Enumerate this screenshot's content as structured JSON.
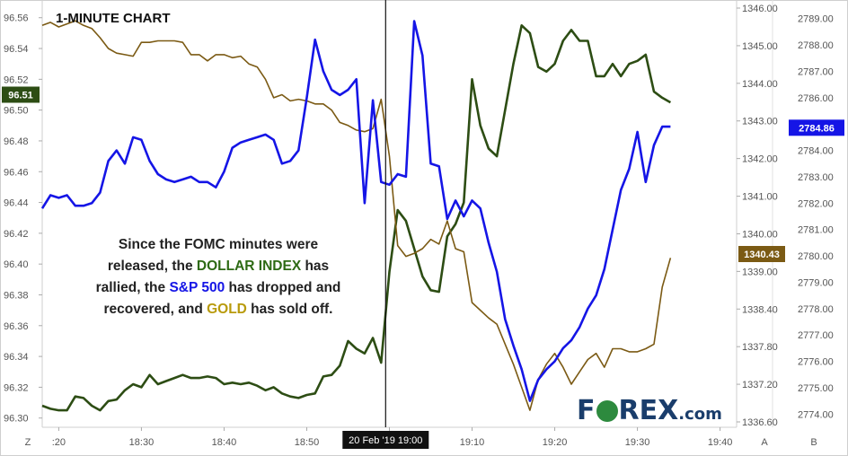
{
  "chart_data": {
    "type": "line",
    "title": "1-MINUTE CHART",
    "annotation": {
      "line1": "Since the FOMC minutes were",
      "line2_pre": "released, the ",
      "line2_hl": "DOLLAR INDEX",
      "line2_post": " has",
      "line3_pre": "rallied, the ",
      "line3_hl": "S&P 500",
      "line3_post": " has dropped and",
      "line4_pre": "recovered, and ",
      "line4_hl": "GOLD",
      "line4_post": " has sold off."
    },
    "x_axis": {
      "ticks": [
        "18:20",
        "18:30",
        "18:40",
        "18:50",
        "19:00",
        "19:10",
        "19:20",
        "19:30",
        "19:40"
      ],
      "tick_display": [
        ":20",
        "18:30",
        "18:40",
        "18:50",
        "",
        "19:10",
        "19:20",
        "19:30",
        "19:40"
      ],
      "range": [
        "18:18",
        "19:42"
      ],
      "event_time": "18:59",
      "event_label": "20 Feb '19  19:00"
    },
    "axes": {
      "dollar": {
        "ticks": [
          "96.56",
          "96.54",
          "96.52",
          "96.50",
          "96.48",
          "96.46",
          "96.44",
          "96.42",
          "96.40",
          "96.38",
          "96.36",
          "96.34",
          "96.32",
          "96.30"
        ],
        "ylim": [
          96.294,
          96.568
        ],
        "current_label": "96.51",
        "color": "#2d4d14"
      },
      "gold": {
        "ticks": [
          "1346.00",
          "1345.00",
          "1344.00",
          "1343.00",
          "1342.00",
          "1341.00",
          "1340.00",
          "1339.00",
          "1338.40",
          "1337.80",
          "1337.20",
          "1336.60"
        ],
        "current_label": "1340.43",
        "color": "#7b5a14"
      },
      "spx": {
        "ticks": [
          "2789.00",
          "2788.00",
          "2787.00",
          "2786.00",
          "2785.00",
          "2784.00",
          "2783.00",
          "2782.00",
          "2781.00",
          "2780.00",
          "2779.00",
          "2778.00",
          "2777.00",
          "2776.00",
          "2775.00",
          "2774.00"
        ],
        "ylim": [
          2773.5,
          2789.5
        ],
        "current_label": "2784.86",
        "color": "#1515e6"
      }
    },
    "series": [
      {
        "name": "DOLLAR INDEX",
        "color": "#2d4d14",
        "x": [
          "18:18",
          "18:19",
          "18:20",
          "18:21",
          "18:22",
          "18:23",
          "18:24",
          "18:25",
          "18:26",
          "18:27",
          "18:28",
          "18:29",
          "18:30",
          "18:31",
          "18:32",
          "18:33",
          "18:34",
          "18:35",
          "18:36",
          "18:37",
          "18:38",
          "18:39",
          "18:40",
          "18:41",
          "18:42",
          "18:43",
          "18:44",
          "18:45",
          "18:46",
          "18:47",
          "18:48",
          "18:49",
          "18:50",
          "18:51",
          "18:52",
          "18:53",
          "18:54",
          "18:55",
          "18:56",
          "18:57",
          "18:58",
          "18:59",
          "19:00",
          "19:01",
          "19:02",
          "19:03",
          "19:04",
          "19:05",
          "19:06",
          "19:07",
          "19:08",
          "19:09",
          "19:10",
          "19:11",
          "19:12",
          "19:13",
          "19:14",
          "19:15",
          "19:16",
          "19:17",
          "19:18",
          "19:19",
          "19:20",
          "19:21",
          "19:22",
          "19:23",
          "19:24",
          "19:25",
          "19:26",
          "19:27",
          "19:28",
          "19:29",
          "19:30",
          "19:31",
          "19:32",
          "19:33",
          "19:34"
        ],
        "values": [
          96.308,
          96.306,
          96.305,
          96.305,
          96.314,
          96.313,
          96.308,
          96.305,
          96.311,
          96.312,
          96.318,
          96.322,
          96.32,
          96.328,
          96.322,
          96.324,
          96.326,
          96.328,
          96.326,
          96.326,
          96.327,
          96.326,
          96.322,
          96.323,
          96.322,
          96.323,
          96.321,
          96.318,
          96.32,
          96.316,
          96.314,
          96.313,
          96.315,
          96.316,
          96.327,
          96.328,
          96.334,
          96.35,
          96.345,
          96.342,
          96.352,
          96.336,
          96.395,
          96.435,
          96.428,
          96.41,
          96.392,
          96.383,
          96.382,
          96.418,
          96.426,
          96.44,
          96.52,
          96.49,
          96.475,
          96.47,
          96.5,
          96.53,
          96.555,
          96.55,
          96.528,
          96.525,
          96.53,
          96.545,
          96.552,
          96.545,
          96.545,
          96.522,
          96.522,
          96.53,
          96.522,
          96.53,
          96.532,
          96.536,
          96.512,
          96.508,
          96.505
        ],
        "axis": "dollar"
      },
      {
        "name": "GOLD",
        "color": "#7b5a14",
        "x": [
          "18:18",
          "18:19",
          "18:20",
          "18:21",
          "18:22",
          "18:23",
          "18:24",
          "18:25",
          "18:26",
          "18:27",
          "18:28",
          "18:29",
          "18:30",
          "18:31",
          "18:32",
          "18:33",
          "18:34",
          "18:35",
          "18:36",
          "18:37",
          "18:38",
          "18:39",
          "18:40",
          "18:41",
          "18:42",
          "18:43",
          "18:44",
          "18:45",
          "18:46",
          "18:47",
          "18:48",
          "18:49",
          "18:50",
          "18:51",
          "18:52",
          "18:53",
          "18:54",
          "18:55",
          "18:56",
          "18:57",
          "18:58",
          "18:59",
          "19:00",
          "19:01",
          "19:02",
          "19:03",
          "19:04",
          "19:05",
          "19:06",
          "19:07",
          "19:08",
          "19:09",
          "19:10",
          "19:11",
          "19:12",
          "19:13",
          "19:14",
          "19:15",
          "19:16",
          "19:17",
          "19:18",
          "19:19",
          "19:20",
          "19:21",
          "19:22",
          "19:23",
          "19:24",
          "19:25",
          "19:26",
          "19:27",
          "19:28",
          "19:29",
          "19:30",
          "19:31",
          "19:32",
          "19:33",
          "19:34"
        ],
        "values": [
          96.555,
          96.557,
          96.554,
          96.556,
          96.558,
          96.555,
          96.553,
          96.547,
          96.54,
          96.537,
          96.536,
          96.535,
          96.544,
          96.544,
          96.545,
          96.545,
          96.545,
          96.544,
          96.536,
          96.536,
          96.532,
          96.536,
          96.536,
          96.534,
          96.535,
          96.53,
          96.528,
          96.52,
          96.508,
          96.51,
          96.506,
          96.507,
          96.506,
          96.504,
          96.504,
          96.5,
          96.492,
          96.49,
          96.487,
          96.486,
          96.488,
          96.507,
          96.47,
          96.412,
          96.405,
          96.407,
          96.41,
          96.416,
          96.413,
          96.428,
          96.41,
          96.408,
          96.375,
          96.37,
          96.365,
          96.361,
          96.348,
          96.335,
          96.32,
          96.305,
          96.325,
          96.335,
          96.342,
          96.333,
          96.322,
          96.33,
          96.338,
          96.342,
          96.333,
          96.345,
          96.345,
          96.343,
          96.343,
          96.345,
          96.348,
          96.385,
          96.404
        ],
        "axis": "dollar"
      },
      {
        "name": "S&P 500",
        "color": "#1515e6",
        "x": [
          "18:18",
          "18:19",
          "18:20",
          "18:21",
          "18:22",
          "18:23",
          "18:24",
          "18:25",
          "18:26",
          "18:27",
          "18:28",
          "18:29",
          "18:30",
          "18:31",
          "18:32",
          "18:33",
          "18:34",
          "18:35",
          "18:36",
          "18:37",
          "18:38",
          "18:39",
          "18:40",
          "18:41",
          "18:42",
          "18:43",
          "18:44",
          "18:45",
          "18:46",
          "18:47",
          "18:48",
          "18:49",
          "18:50",
          "18:51",
          "18:52",
          "18:53",
          "18:54",
          "18:55",
          "18:56",
          "18:57",
          "18:58",
          "18:59",
          "19:00",
          "19:01",
          "19:02",
          "19:03",
          "19:04",
          "19:05",
          "19:06",
          "19:07",
          "19:08",
          "19:09",
          "19:10",
          "19:11",
          "19:12",
          "19:13",
          "19:14",
          "19:15",
          "19:16",
          "19:17",
          "19:18",
          "19:19",
          "19:20",
          "19:21",
          "19:22",
          "19:23",
          "19:24",
          "19:25",
          "19:26",
          "19:27",
          "19:28",
          "19:29",
          "19:30",
          "19:31",
          "19:32",
          "19:33",
          "19:34"
        ],
        "values": [
          2781.8,
          2782.3,
          2782.2,
          2782.3,
          2781.9,
          2781.9,
          2782.0,
          2782.4,
          2783.6,
          2784.0,
          2783.5,
          2784.5,
          2784.4,
          2783.6,
          2783.1,
          2782.9,
          2782.8,
          2782.9,
          2783.0,
          2782.8,
          2782.8,
          2782.6,
          2783.2,
          2784.1,
          2784.3,
          2784.4,
          2784.5,
          2784.6,
          2784.4,
          2783.5,
          2783.6,
          2784.0,
          2786.0,
          2788.2,
          2787.0,
          2786.3,
          2786.1,
          2786.3,
          2786.7,
          2782.0,
          2785.9,
          2782.8,
          2782.7,
          2783.1,
          2783.0,
          2788.9,
          2787.6,
          2783.5,
          2783.4,
          2781.4,
          2782.1,
          2781.5,
          2782.1,
          2781.8,
          2780.5,
          2779.4,
          2777.6,
          2776.6,
          2775.7,
          2774.5,
          2775.3,
          2775.7,
          2776.0,
          2776.5,
          2776.8,
          2777.3,
          2778.0,
          2778.5,
          2779.5,
          2781.0,
          2782.5,
          2783.3,
          2784.7,
          2782.8,
          2784.2,
          2784.9,
          2784.9
        ],
        "axis": "spx"
      }
    ]
  },
  "ui": {
    "scale_mode_left": "Z",
    "scale_mode_auto": "A",
    "scale_mode_b": "B",
    "logo_fo": "F",
    "logo_rex": "REX",
    "logo_com": ".com"
  }
}
